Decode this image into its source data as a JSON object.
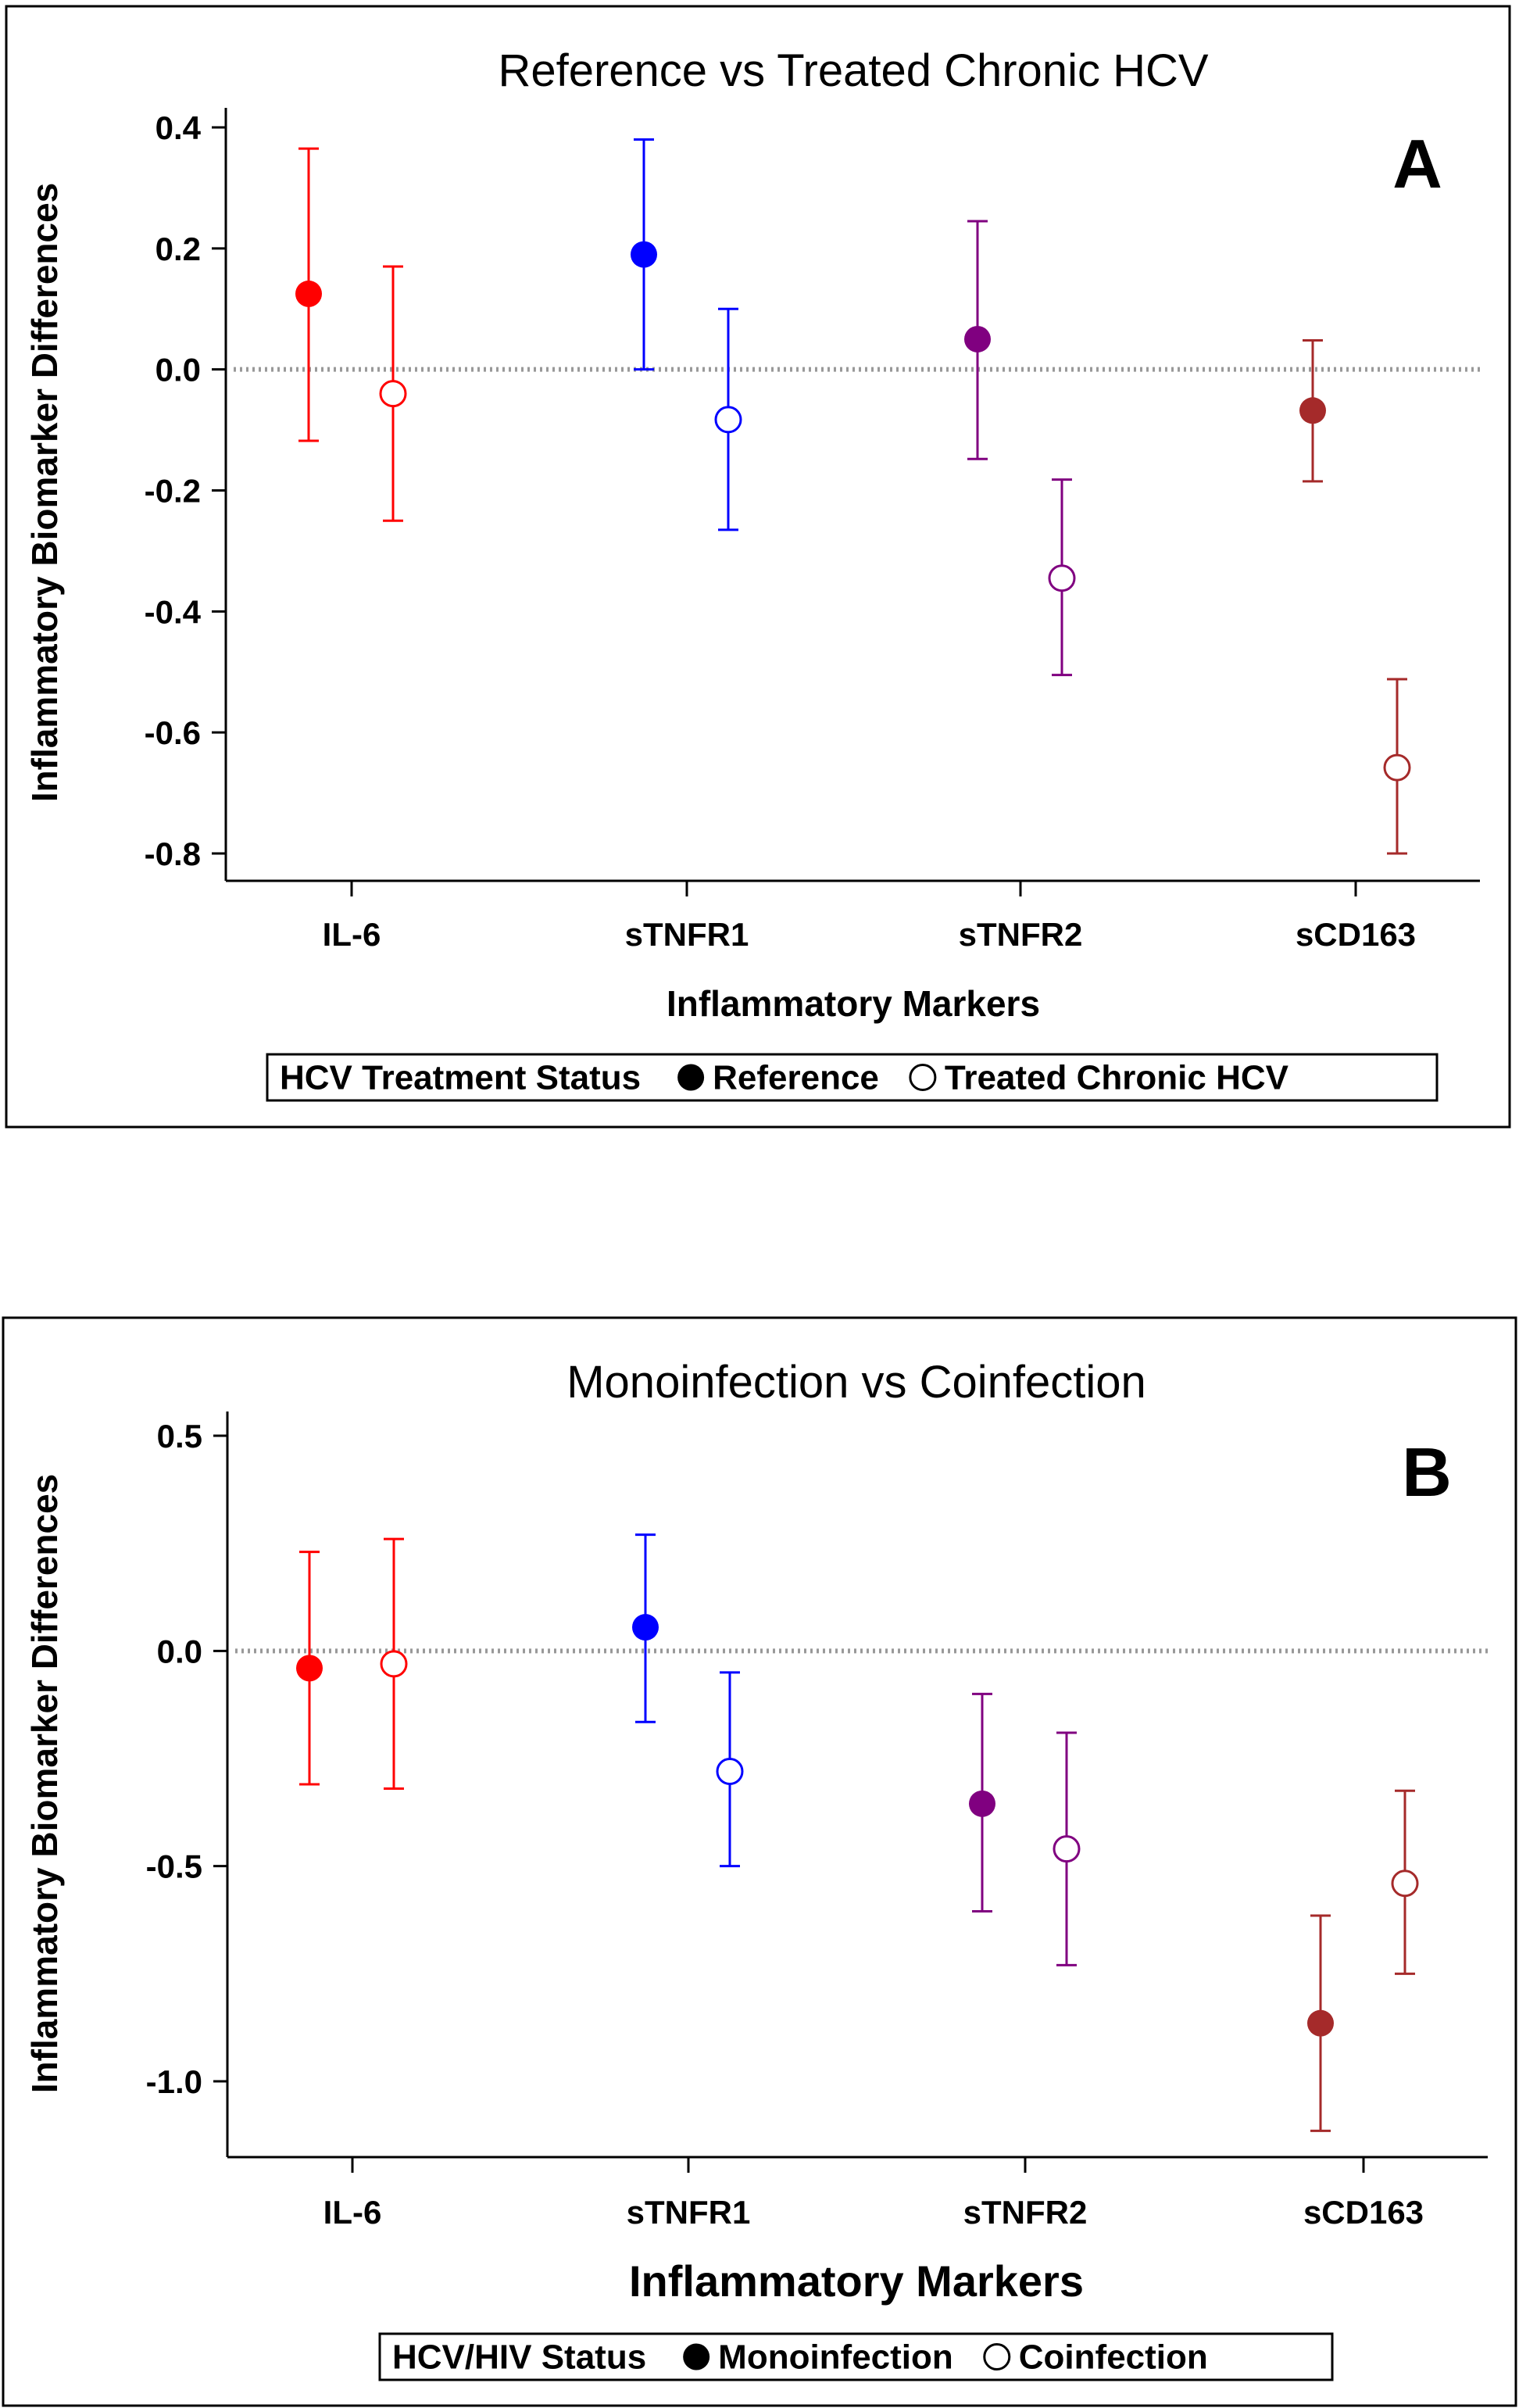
{
  "chart_data": [
    {
      "type": "scatter",
      "title": "Reference vs Treated Chronic HCV",
      "panel_label": "A",
      "xlabel": "Inflammatory Markers",
      "ylabel": "Inflammatory Biomarker Differences",
      "categories": [
        "IL-6",
        "sTNFR1",
        "sTNFR2",
        "sCD163"
      ],
      "colors": [
        "#ff0000",
        "#0000ff",
        "#800080",
        "#a52a2a"
      ],
      "yticks": [
        0.4,
        0.2,
        0.0,
        -0.2,
        -0.4,
        -0.6,
        -0.8
      ],
      "ytick_labels": [
        "0.4",
        "0.2",
        "0.0",
        "-0.2",
        "-0.4",
        "-0.6",
        "-0.8"
      ],
      "ylim": [
        -0.9,
        0.46
      ],
      "reference_line": 0,
      "legend": {
        "title": "HCV Treatment Status",
        "placement": "bottom"
      },
      "series": [
        {
          "name": "Reference",
          "marker": "filled",
          "values": [
            0.125,
            0.19,
            0.05,
            -0.068
          ],
          "lower": [
            -0.118,
            0.0,
            -0.148,
            -0.185
          ],
          "upper": [
            0.365,
            0.38,
            0.245,
            0.048
          ]
        },
        {
          "name": "Treated Chronic HCV",
          "marker": "open",
          "values": [
            -0.04,
            -0.083,
            -0.345,
            -0.658
          ],
          "lower": [
            -0.25,
            -0.265,
            -0.505,
            -0.8
          ],
          "upper": [
            0.17,
            0.1,
            -0.182,
            -0.512
          ]
        }
      ]
    },
    {
      "type": "scatter",
      "title": "Monoinfection vs Coinfection",
      "panel_label": "B",
      "xlabel": "Inflammatory Markers",
      "ylabel": "Inflammatory Biomarker Differences",
      "categories": [
        "IL-6",
        "sTNFR1",
        "sTNFR2",
        "sCD163"
      ],
      "colors": [
        "#ff0000",
        "#0000ff",
        "#800080",
        "#a52a2a"
      ],
      "yticks": [
        0.5,
        0.0,
        -0.5,
        -1.0
      ],
      "ytick_labels": [
        "0.5",
        "0.0",
        "-0.5",
        "-1.0"
      ],
      "ylim": [
        -1.18,
        0.56
      ],
      "reference_line": 0,
      "legend": {
        "title": "HCV/HIV Status",
        "placement": "bottom"
      },
      "series": [
        {
          "name": "Monoinfection",
          "marker": "filled",
          "values": [
            -0.04,
            0.055,
            -0.355,
            -0.865
          ],
          "lower": [
            -0.31,
            -0.165,
            -0.605,
            -1.115
          ],
          "upper": [
            0.23,
            0.27,
            -0.1,
            -0.615
          ]
        },
        {
          "name": "Coinfection",
          "marker": "open",
          "values": [
            -0.03,
            -0.28,
            -0.46,
            -0.54
          ],
          "lower": [
            -0.32,
            -0.5,
            -0.73,
            -0.75
          ],
          "upper": [
            0.26,
            -0.05,
            -0.19,
            -0.325
          ]
        }
      ]
    }
  ]
}
